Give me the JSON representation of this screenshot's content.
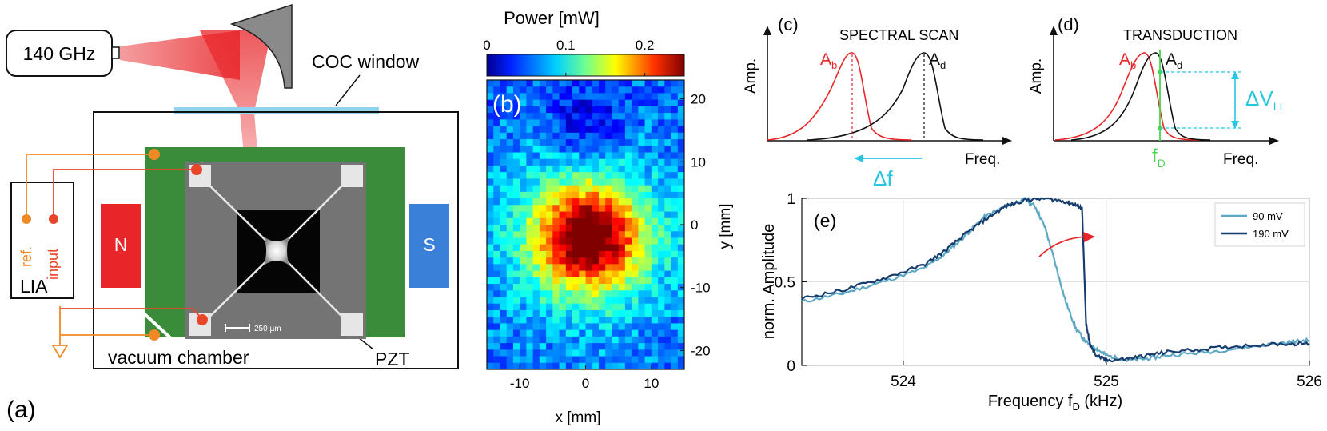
{
  "panel_a": {
    "label": "(a)",
    "source_label": "140 GHz",
    "window_label": "COC window",
    "chamber_label": "vacuum chamber",
    "pzt_label": "PZT",
    "magnet_n": "N",
    "magnet_s": "S",
    "lia_label": "LIA",
    "lia_ref": "ref.",
    "lia_input": "input",
    "scalebar_label": "250 µm",
    "colors": {
      "beam": "#e8262a",
      "chamber_green": "#3a8c3a",
      "window": "#8fd3f0",
      "wire_orange": "#f08a24",
      "wire_red": "#e8452a",
      "magnet_n": "#e8262a",
      "magnet_s": "#3a7fd8"
    }
  },
  "panel_b": {
    "label": "(b)",
    "colorbar_title": "Power [mW]",
    "colorbar_ticks": [
      "0",
      "0.1",
      "0.2"
    ],
    "colorbar_range": [
      0,
      0.25
    ],
    "x_label": "x [mm]",
    "y_label": "y [mm]",
    "x_ticks": [
      "-10",
      "0",
      "10"
    ],
    "y_ticks": [
      "20",
      "10",
      "0",
      "-10",
      "-20"
    ],
    "x_range": [
      -15,
      15
    ],
    "y_range": [
      -23,
      23
    ]
  },
  "panel_c": {
    "label": "(c)",
    "title": "SPECTRAL SCAN",
    "y_axis": "Amp.",
    "x_axis": "Freq.",
    "curve_b_main": "A",
    "curve_b_sub": "b",
    "curve_d_main": "A",
    "curve_d_sub": "d",
    "shift_label": "Δf"
  },
  "panel_d": {
    "label": "(d)",
    "title": "TRANSDUCTION",
    "y_axis": "Amp.",
    "x_axis": "Freq.",
    "curve_b_main": "A",
    "curve_b_sub": "b",
    "curve_d_main": "A",
    "curve_d_sub": "d",
    "dv_main": "ΔV",
    "dv_sub": "LI",
    "fd_main": "f",
    "fd_sub": "D"
  },
  "chart_data": {
    "type": "line",
    "label": "(e)",
    "title": "",
    "xlabel_main": "Frequency f",
    "xlabel_sub": "D",
    "xlabel_unit": " (kHz)",
    "ylabel": "norm. Amplitude",
    "xlim": [
      523.5,
      526
    ],
    "ylim": [
      0,
      1
    ],
    "x_ticks": [
      524,
      525,
      526
    ],
    "y_ticks": [
      0,
      0.5,
      1
    ],
    "grid": true,
    "legend_position": "top-right",
    "series": [
      {
        "name": "90 mV",
        "color": "#5fa8c4",
        "x": [
          523.5,
          523.7,
          523.9,
          524.1,
          524.2,
          524.3,
          524.4,
          524.5,
          524.6,
          524.65,
          524.7,
          524.75,
          524.8,
          524.85,
          524.9,
          524.95,
          525.0,
          525.1,
          525.2,
          525.3,
          525.5,
          525.7,
          525.9,
          526.0
        ],
        "y": [
          0.38,
          0.43,
          0.5,
          0.58,
          0.66,
          0.77,
          0.89,
          0.95,
          1.0,
          0.95,
          0.82,
          0.6,
          0.38,
          0.22,
          0.14,
          0.1,
          0.06,
          0.03,
          0.04,
          0.06,
          0.08,
          0.11,
          0.14,
          0.15
        ]
      },
      {
        "name": "190 mV",
        "color": "#163d6e",
        "x": [
          523.5,
          523.7,
          523.9,
          524.1,
          524.2,
          524.3,
          524.4,
          524.5,
          524.6,
          524.7,
          524.8,
          524.85,
          524.88,
          524.89,
          524.9,
          524.92,
          524.95,
          525.0,
          525.1,
          525.2,
          525.3,
          525.5,
          525.7,
          525.9,
          526.0
        ],
        "y": [
          0.4,
          0.45,
          0.52,
          0.6,
          0.68,
          0.78,
          0.87,
          0.95,
          0.99,
          1.0,
          0.98,
          0.96,
          0.94,
          0.6,
          0.25,
          0.12,
          0.06,
          0.03,
          0.04,
          0.06,
          0.08,
          0.1,
          0.12,
          0.13,
          0.13
        ]
      }
    ]
  }
}
